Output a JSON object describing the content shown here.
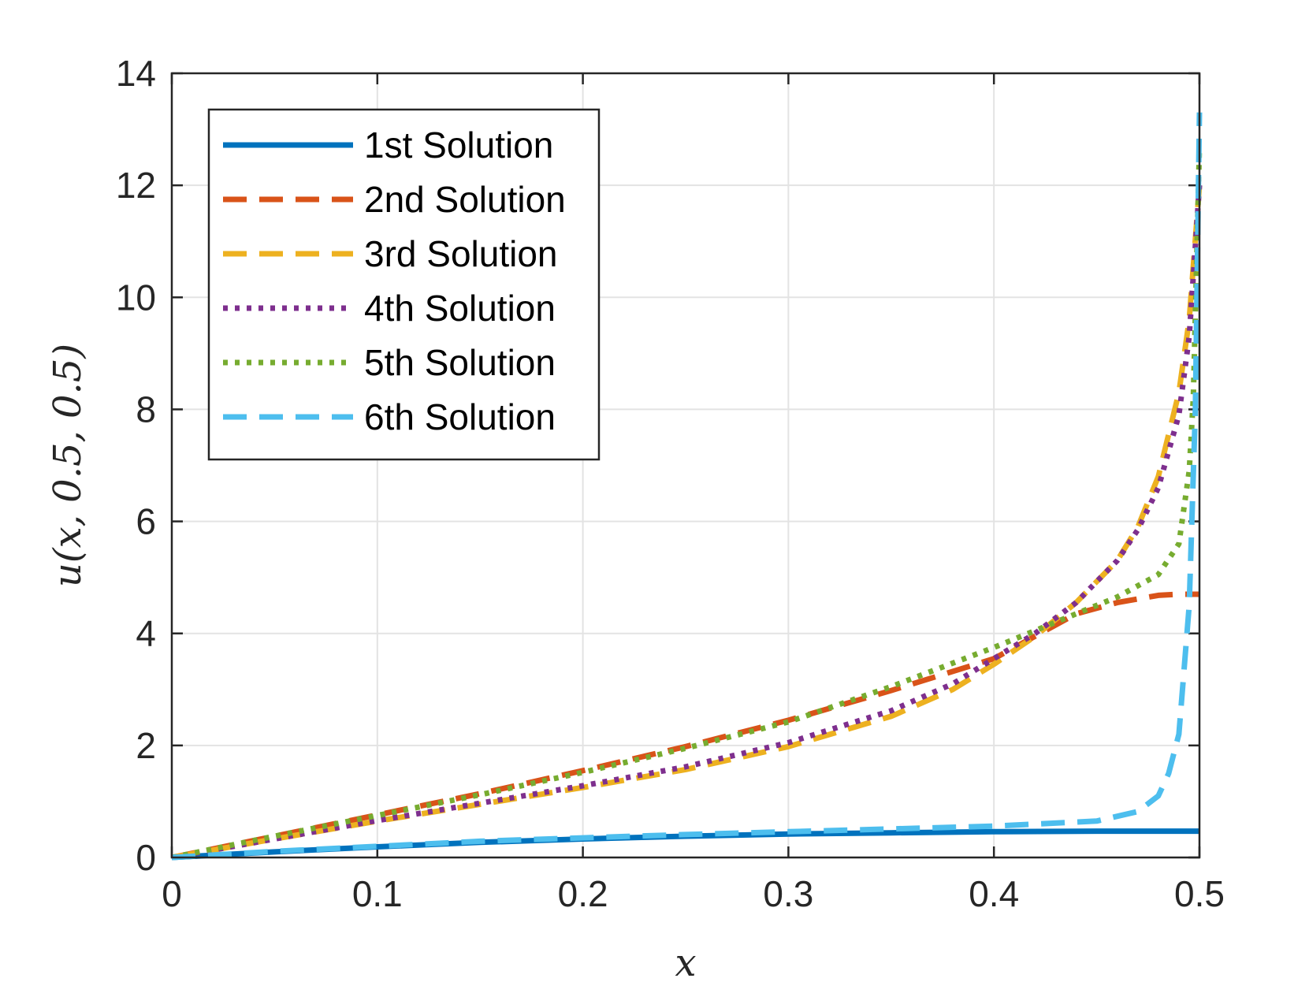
{
  "chart_data": {
    "type": "line",
    "title": "",
    "xlabel": "x",
    "ylabel": "u(x, 0.5, 0.5)",
    "xlim": [
      0,
      0.5
    ],
    "ylim": [
      0,
      14
    ],
    "xticks": [
      0,
      0.1,
      0.2,
      0.3,
      0.4,
      0.5
    ],
    "xtick_labels": [
      "0",
      "0.1",
      "0.2",
      "0.3",
      "0.4",
      "0.5"
    ],
    "yticks": [
      0,
      2,
      4,
      6,
      8,
      10,
      12,
      14
    ],
    "ytick_labels": [
      "0",
      "2",
      "4",
      "6",
      "8",
      "10",
      "12",
      "14"
    ],
    "grid": true,
    "legend_position": "top-left",
    "series": [
      {
        "name": "1st Solution",
        "color": "#0072BD",
        "style": "solid",
        "x": [
          0,
          0.05,
          0.1,
          0.15,
          0.2,
          0.25,
          0.3,
          0.35,
          0.4,
          0.45,
          0.5
        ],
        "y": [
          0,
          0.1,
          0.19,
          0.27,
          0.33,
          0.38,
          0.42,
          0.44,
          0.46,
          0.47,
          0.47
        ]
      },
      {
        "name": "2nd Solution",
        "color": "#D95319",
        "style": "dashed",
        "x": [
          0,
          0.05,
          0.1,
          0.15,
          0.2,
          0.25,
          0.3,
          0.35,
          0.4,
          0.42,
          0.44,
          0.46,
          0.48,
          0.49,
          0.5
        ],
        "y": [
          0,
          0.38,
          0.76,
          1.14,
          1.55,
          1.98,
          2.45,
          2.98,
          3.55,
          3.95,
          4.35,
          4.55,
          4.68,
          4.7,
          4.7
        ]
      },
      {
        "name": "3rd Solution",
        "color": "#EDB120",
        "style": "dashed",
        "x": [
          0,
          0.05,
          0.1,
          0.15,
          0.2,
          0.25,
          0.3,
          0.35,
          0.38,
          0.4,
          0.42,
          0.44,
          0.46,
          0.47,
          0.48,
          0.49,
          0.495,
          0.5
        ],
        "y": [
          0,
          0.33,
          0.65,
          0.95,
          1.25,
          1.57,
          1.98,
          2.52,
          3.0,
          3.45,
          3.95,
          4.55,
          5.3,
          5.9,
          6.8,
          8.3,
          9.6,
          12.0
        ]
      },
      {
        "name": "4th Solution",
        "color": "#7E2F8E",
        "style": "dotted",
        "x": [
          0,
          0.05,
          0.1,
          0.15,
          0.2,
          0.25,
          0.3,
          0.35,
          0.38,
          0.4,
          0.42,
          0.44,
          0.46,
          0.47,
          0.48,
          0.49,
          0.495,
          0.5
        ],
        "y": [
          0,
          0.33,
          0.66,
          0.97,
          1.28,
          1.62,
          2.05,
          2.62,
          3.1,
          3.55,
          4.0,
          4.55,
          5.3,
          5.85,
          6.6,
          7.9,
          9.3,
          12.0
        ]
      },
      {
        "name": "5th Solution",
        "color": "#77AC30",
        "style": "dotted",
        "x": [
          0,
          0.05,
          0.1,
          0.15,
          0.2,
          0.25,
          0.3,
          0.35,
          0.4,
          0.42,
          0.44,
          0.46,
          0.48,
          0.49,
          0.495,
          0.497,
          0.5
        ],
        "y": [
          0,
          0.38,
          0.75,
          1.12,
          1.52,
          1.95,
          2.42,
          3.05,
          3.75,
          4.05,
          4.35,
          4.65,
          5.05,
          5.6,
          6.9,
          8.2,
          12.7
        ]
      },
      {
        "name": "6th Solution",
        "color": "#4DBEEE",
        "style": "dashed",
        "x": [
          0,
          0.05,
          0.1,
          0.15,
          0.2,
          0.25,
          0.3,
          0.35,
          0.4,
          0.45,
          0.47,
          0.48,
          0.485,
          0.49,
          0.495,
          0.498,
          0.5
        ],
        "y": [
          0,
          0.11,
          0.2,
          0.29,
          0.35,
          0.41,
          0.46,
          0.51,
          0.56,
          0.65,
          0.82,
          1.1,
          1.5,
          2.2,
          4.5,
          8.0,
          13.3
        ]
      }
    ]
  }
}
